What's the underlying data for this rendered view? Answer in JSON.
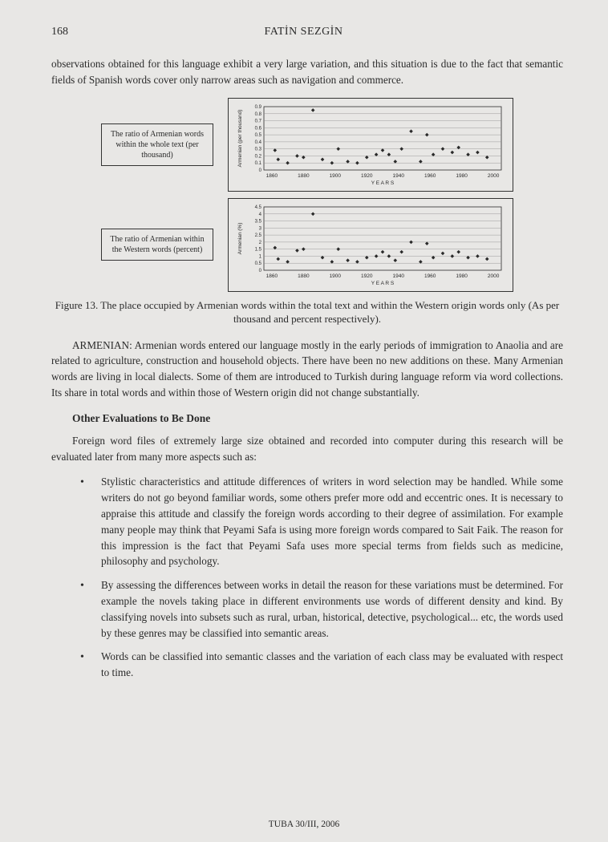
{
  "page_number": "168",
  "header_author": "FATİN SEZGİN",
  "intro_para": "observations obtained for this language exhibit a very large variation, and this situation is due to the fact that semantic fields of Spanish words cover only narrow areas such as navigation and commerce.",
  "chart1": {
    "label_box": "The ratio of Armenian words within the whole text (per thousand)",
    "ylabel": "Armenian (per thousand)",
    "xlabel": "Y E A R S",
    "xlim": [
      1855,
      2005
    ],
    "ylim": [
      0,
      0.9
    ],
    "xticks": [
      1860,
      1880,
      1900,
      1920,
      1940,
      1960,
      1980,
      2000
    ],
    "yticks": [
      0,
      0.1,
      0.2,
      0.3,
      0.4,
      0.5,
      0.6,
      0.7,
      0.8,
      0.9
    ],
    "points": [
      [
        1862,
        0.28
      ],
      [
        1864,
        0.15
      ],
      [
        1870,
        0.1
      ],
      [
        1876,
        0.2
      ],
      [
        1880,
        0.18
      ],
      [
        1886,
        0.85
      ],
      [
        1892,
        0.15
      ],
      [
        1898,
        0.1
      ],
      [
        1902,
        0.3
      ],
      [
        1908,
        0.12
      ],
      [
        1914,
        0.1
      ],
      [
        1920,
        0.18
      ],
      [
        1926,
        0.22
      ],
      [
        1930,
        0.28
      ],
      [
        1934,
        0.22
      ],
      [
        1938,
        0.12
      ],
      [
        1942,
        0.3
      ],
      [
        1948,
        0.55
      ],
      [
        1954,
        0.12
      ],
      [
        1958,
        0.5
      ],
      [
        1962,
        0.22
      ],
      [
        1968,
        0.3
      ],
      [
        1974,
        0.25
      ],
      [
        1978,
        0.32
      ],
      [
        1984,
        0.22
      ],
      [
        1990,
        0.25
      ],
      [
        1996,
        0.18
      ]
    ],
    "marker_color": "#2a2a2a",
    "grid_color": "#888888",
    "bg_color": "#e8e7e5"
  },
  "chart2": {
    "label_box": "The ratio of Armenian within the Western words (percent)",
    "ylabel": "Armenian (%)",
    "xlabel": "Y E A R S",
    "xlim": [
      1855,
      2005
    ],
    "ylim": [
      0,
      4.5
    ],
    "xticks": [
      1860,
      1880,
      1900,
      1920,
      1940,
      1960,
      1980,
      2000
    ],
    "yticks": [
      0,
      0.5,
      1,
      1.5,
      2,
      2.5,
      3,
      3.5,
      4,
      4.5
    ],
    "points": [
      [
        1862,
        1.6
      ],
      [
        1864,
        0.8
      ],
      [
        1870,
        0.6
      ],
      [
        1876,
        1.4
      ],
      [
        1880,
        1.5
      ],
      [
        1886,
        4.0
      ],
      [
        1892,
        0.9
      ],
      [
        1898,
        0.6
      ],
      [
        1902,
        1.5
      ],
      [
        1908,
        0.7
      ],
      [
        1914,
        0.6
      ],
      [
        1920,
        0.9
      ],
      [
        1926,
        1.0
      ],
      [
        1930,
        1.3
      ],
      [
        1934,
        1.0
      ],
      [
        1938,
        0.7
      ],
      [
        1942,
        1.3
      ],
      [
        1948,
        2.0
      ],
      [
        1954,
        0.6
      ],
      [
        1958,
        1.9
      ],
      [
        1962,
        0.9
      ],
      [
        1968,
        1.2
      ],
      [
        1974,
        1.0
      ],
      [
        1978,
        1.3
      ],
      [
        1984,
        0.9
      ],
      [
        1990,
        1.0
      ],
      [
        1996,
        0.8
      ]
    ],
    "marker_color": "#2a2a2a",
    "grid_color": "#888888",
    "bg_color": "#e8e7e5"
  },
  "figure_caption": "Figure 13. The place occupied by Armenian words within the total text and within the Western origin words only (As per thousand and percent respectively).",
  "armenian_para": "ARMENIAN: Armenian words entered our language mostly in the early periods of immigration to Anaolia and are related to agriculture, construction and household objects. There have been no new additions on these. Many Armenian words are living in local dialects. Some of them are introduced to Turkish during language reform via word collections. Its share in total words and within those of Western origin did not change substantially.",
  "section_heading": "Other Evaluations to Be Done",
  "eval_intro": "Foreign word files of extremely large size obtained and recorded into computer during this research will be evaluated later from many more aspects such as:",
  "bullets": [
    "Stylistic characteristics and attitude differences of writers in word selection may be handled. While some writers do not go beyond familiar words, some others prefer more odd and eccentric ones. It is necessary to appraise this attitude and classify the foreign words according to their degree of assimilation. For example many people may think that Peyami Safa is using more foreign words compared to Sait Faik. The reason for this impression is the fact that Peyami Safa uses more special terms from fields such as medicine, philosophy and psychology.",
    "By assessing the differences between works in detail the reason for these variations must be determined. For example the novels taking place in different environments use words of different density and kind. By classifying novels into subsets such as rural, urban, historical, detective, psychological... etc, the words used by these genres may be classified into semantic areas.",
    "Words can be classified into semantic classes and the variation of each class may be evaluated with respect to time."
  ],
  "footer": "TUBA 30/III, 2006"
}
